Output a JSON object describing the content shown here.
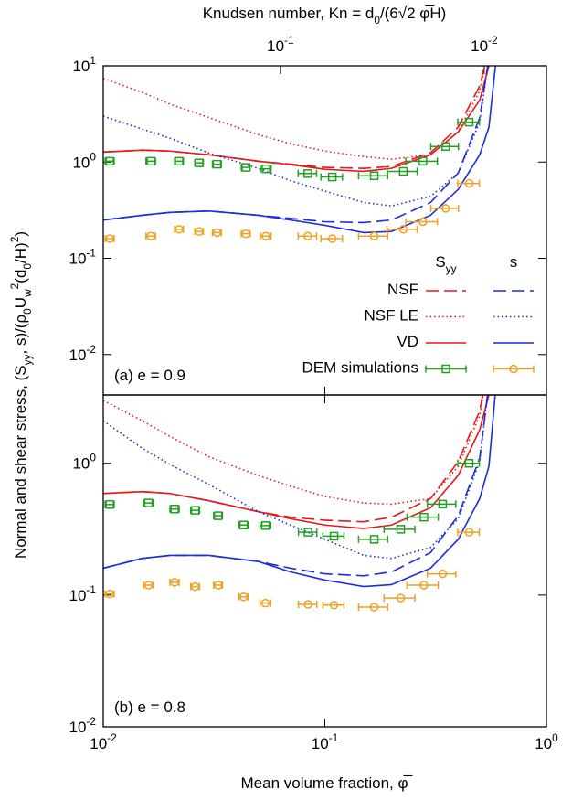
{
  "chart_data": [
    {
      "type": "line",
      "log_x": true,
      "log_y": true,
      "x2label": "Knudsen number, Kn = d_{0}/(6√2 φ̅H)",
      "x2lim": [
        0.74,
        0.00495
      ],
      "x2ticks": [
        {
          "value": 0.1,
          "label": "10^{-1}"
        },
        {
          "value": 0.01,
          "label": "10^{-2}"
        }
      ],
      "ylabel": "Normal and shear stress, (S_{yy}, s)/(ρ_{0}U_{w}^{2}(d_{0}/H)^{2})",
      "annotation": "(a) e = 0.9",
      "xlim": [
        0.01,
        1
      ],
      "ylim": [
        0.0038,
        10
      ],
      "yticks": [
        {
          "value": 0.01,
          "label": "10^{-2}"
        },
        {
          "value": 0.1,
          "label": "10^{-1}"
        },
        {
          "value": 1,
          "label": "10^{0}"
        },
        {
          "value": 10,
          "label": "10^{1}"
        }
      ],
      "x": [
        0.01,
        0.015,
        0.02,
        0.03,
        0.05,
        0.07,
        0.1,
        0.15,
        0.2,
        0.3,
        0.4,
        0.5,
        0.55,
        0.6
      ],
      "series": [
        {
          "name": "NSF",
          "quantity": "S_{yy}",
          "color": "#e31a1c",
          "dash": "dashed",
          "values": [
            1.27,
            1.33,
            1.3,
            1.19,
            1.02,
            0.95,
            0.88,
            0.86,
            0.9,
            1.25,
            2.3,
            6.2,
            15,
            null
          ]
        },
        {
          "name": "NSF LE",
          "quantity": "S_{yy}",
          "color": "#e31a1c",
          "dash": "dotted",
          "values": [
            7.4,
            5.3,
            4.0,
            2.9,
            1.93,
            1.55,
            1.3,
            1.14,
            1.07,
            1.19,
            2.06,
            5.5,
            15,
            null
          ]
        },
        {
          "name": "VD",
          "quantity": "S_{yy}",
          "color": "#e31a1c",
          "dash": "solid",
          "values": [
            1.27,
            1.33,
            1.3,
            1.19,
            1.02,
            0.94,
            0.84,
            0.8,
            0.86,
            1.19,
            2.06,
            4.4,
            10,
            null
          ]
        },
        {
          "name": "NSF",
          "quantity": "s",
          "color": "#1c2fd6",
          "dash": "dashed",
          "values": [
            0.25,
            0.28,
            0.3,
            0.31,
            0.28,
            0.26,
            0.24,
            0.235,
            0.25,
            0.38,
            0.77,
            2.9,
            12,
            null
          ]
        },
        {
          "name": "NSF LE",
          "quantity": "s",
          "color": "#1c2fd6",
          "dash": "dotted",
          "values": [
            3.0,
            2.2,
            1.77,
            1.24,
            0.86,
            0.64,
            0.5,
            0.38,
            0.35,
            0.44,
            0.77,
            2.6,
            12,
            null
          ]
        },
        {
          "name": "VD",
          "quantity": "s",
          "color": "#1c2fd6",
          "dash": "solid",
          "values": [
            0.25,
            0.28,
            0.3,
            0.31,
            0.28,
            0.25,
            0.22,
            0.185,
            0.19,
            0.28,
            0.52,
            1.19,
            2.3,
            15
          ]
        },
        {
          "name": "DEM simulations",
          "quantity": "S_{yy}",
          "color": "#22a022",
          "marker": "square",
          "x": [
            0.0107,
            0.0164,
            0.022,
            0.0271,
            0.0326,
            0.044,
            0.0542,
            0.0838,
            0.108,
            0.167,
            0.226,
            0.277,
            0.351,
            0.448
          ],
          "xerr": [
            0.0005,
            0.0008,
            0.001,
            0.0012,
            0.0015,
            0.002,
            0.003,
            0.008,
            0.012,
            0.025,
            0.035,
            0.045,
            0.05,
            0.05
          ],
          "values": [
            1.02,
            1.02,
            1.02,
            0.98,
            0.95,
            0.88,
            0.85,
            0.76,
            0.7,
            0.72,
            0.8,
            1.02,
            1.45,
            2.6
          ]
        },
        {
          "name": "DEM simulations",
          "quantity": "s",
          "color": "#f0a020",
          "marker": "circle",
          "x": [
            0.0107,
            0.0164,
            0.022,
            0.0271,
            0.0326,
            0.044,
            0.0542,
            0.0838,
            0.108,
            0.167,
            0.226,
            0.277,
            0.351,
            0.448
          ],
          "xerr": [
            0.0005,
            0.0008,
            0.001,
            0.0012,
            0.0015,
            0.002,
            0.003,
            0.008,
            0.012,
            0.025,
            0.035,
            0.045,
            0.05,
            0.05
          ],
          "values": [
            0.16,
            0.17,
            0.2,
            0.19,
            0.185,
            0.18,
            0.17,
            0.17,
            0.16,
            0.17,
            0.2,
            0.24,
            0.33,
            0.6
          ]
        }
      ]
    },
    {
      "type": "line",
      "log_x": true,
      "log_y": true,
      "xlabel": "Mean volume fraction, φ̅",
      "annotation": "(b) e = 0.8",
      "xlim": [
        0.01,
        1
      ],
      "xticks": [
        {
          "value": 0.01,
          "label": "10^{-2}"
        },
        {
          "value": 0.1,
          "label": "10^{-1}"
        },
        {
          "value": 1,
          "label": "10^{0}"
        }
      ],
      "ylim": [
        0.01,
        3.3
      ],
      "yticks": [
        {
          "value": 0.01,
          "label": "10^{-2}"
        },
        {
          "value": 0.1,
          "label": "10^{-1}"
        },
        {
          "value": 1,
          "label": "10^{0}"
        }
      ],
      "x": [
        0.01,
        0.015,
        0.02,
        0.03,
        0.05,
        0.07,
        0.1,
        0.15,
        0.2,
        0.3,
        0.4,
        0.5,
        0.55,
        0.6
      ],
      "series": [
        {
          "name": "NSF",
          "quantity": "S_{yy}",
          "color": "#e31a1c",
          "dash": "dashed",
          "values": [
            0.59,
            0.61,
            0.59,
            0.52,
            0.43,
            0.39,
            0.37,
            0.36,
            0.39,
            0.54,
            1.03,
            2.5,
            6,
            null
          ]
        },
        {
          "name": "NSF LE",
          "quantity": "S_{yy}",
          "color": "#e31a1c",
          "dash": "dotted",
          "values": [
            3.0,
            2.1,
            1.6,
            1.12,
            0.81,
            0.67,
            0.56,
            0.5,
            0.49,
            0.54,
            0.95,
            2.3,
            6,
            null
          ]
        },
        {
          "name": "VD",
          "quantity": "S_{yy}",
          "color": "#e31a1c",
          "dash": "solid",
          "values": [
            0.59,
            0.61,
            0.59,
            0.52,
            0.43,
            0.38,
            0.34,
            0.32,
            0.34,
            0.46,
            0.81,
            1.8,
            3.3,
            null
          ]
        },
        {
          "name": "NSF",
          "quantity": "s",
          "color": "#1c2fd6",
          "dash": "dashed",
          "values": [
            0.16,
            0.19,
            0.2,
            0.2,
            0.18,
            0.16,
            0.145,
            0.14,
            0.15,
            0.21,
            0.4,
            1.1,
            4,
            null
          ]
        },
        {
          "name": "NSF LE",
          "quantity": "s",
          "color": "#1c2fd6",
          "dash": "dotted",
          "values": [
            2.1,
            1.3,
            0.98,
            0.69,
            0.43,
            0.34,
            0.265,
            0.2,
            0.19,
            0.23,
            0.38,
            1.03,
            4,
            null
          ]
        },
        {
          "name": "VD",
          "quantity": "s",
          "color": "#1c2fd6",
          "dash": "solid",
          "values": [
            0.16,
            0.19,
            0.2,
            0.2,
            0.18,
            0.15,
            0.13,
            0.116,
            0.12,
            0.16,
            0.265,
            0.54,
            0.95,
            5
          ]
        },
        {
          "name": "DEM simulations",
          "quantity": "S_{yy}",
          "color": "#22a022",
          "marker": "square",
          "x": [
            0.0107,
            0.016,
            0.021,
            0.026,
            0.033,
            0.043,
            0.054,
            0.084,
            0.11,
            0.167,
            0.22,
            0.28,
            0.34,
            0.448
          ],
          "xerr": [
            0.0005,
            0.0008,
            0.001,
            0.0012,
            0.0015,
            0.002,
            0.003,
            0.008,
            0.012,
            0.025,
            0.035,
            0.045,
            0.05,
            0.05
          ],
          "values": [
            0.487,
            0.5,
            0.45,
            0.44,
            0.4,
            0.34,
            0.337,
            0.3,
            0.28,
            0.265,
            0.316,
            0.39,
            0.49,
            1.0
          ]
        },
        {
          "name": "DEM simulations",
          "quantity": "s",
          "color": "#f0a020",
          "marker": "circle",
          "x": [
            0.0107,
            0.016,
            0.021,
            0.026,
            0.033,
            0.043,
            0.054,
            0.084,
            0.11,
            0.167,
            0.22,
            0.28,
            0.34,
            0.448
          ],
          "xerr": [
            0.0005,
            0.0008,
            0.001,
            0.0012,
            0.0015,
            0.002,
            0.003,
            0.008,
            0.012,
            0.025,
            0.035,
            0.045,
            0.05,
            0.05
          ],
          "values": [
            0.102,
            0.119,
            0.125,
            0.116,
            0.119,
            0.097,
            0.087,
            0.085,
            0.084,
            0.081,
            0.095,
            0.119,
            0.145,
            0.3
          ]
        }
      ]
    }
  ]
}
